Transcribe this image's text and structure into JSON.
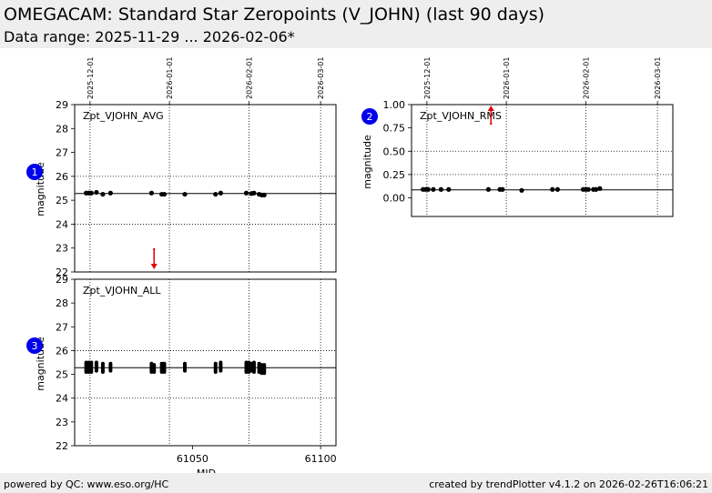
{
  "header": {
    "title": "OMEGACAM: Standard Star Zeropoints (V_JOHN) (last 90 days)",
    "subtitle": "Data range: 2025-11-29 ... 2026-02-06*"
  },
  "footer": {
    "left": "powered by QC: www.eso.org/HC",
    "right": "created by trendPlotter v4.1.2 on 2026-02-26T16:06:21"
  },
  "colors": {
    "marker": "#000000",
    "outlier_arrow": "#dd0000",
    "badge": "#0000ee",
    "header_bg": "#eeeeee"
  },
  "chart_data": [
    {
      "id": "zpt_avg",
      "badge": "1",
      "type": "scatter",
      "label": "Zpt_VJOHN_AVG",
      "ylabel": "magnitude",
      "ylim": [
        22,
        29
      ],
      "yticks": [
        22,
        23,
        24,
        25,
        26,
        27,
        28,
        29
      ],
      "xlim": [
        61004,
        61106
      ],
      "date_ticks": [
        {
          "mjd": 61010,
          "label": "2025-12-01"
        },
        {
          "mjd": 61041,
          "label": "2026-01-01"
        },
        {
          "mjd": 61072,
          "label": "2026-02-01"
        },
        {
          "mjd": 61100,
          "label": "2026-03-01"
        }
      ],
      "hlines": [
        26.0,
        24.0
      ],
      "reference": 25.28,
      "points": [
        {
          "x": 61008.5,
          "y": 25.3
        },
        {
          "x": 61009.5,
          "y": 25.3
        },
        {
          "x": 61010.5,
          "y": 25.3
        },
        {
          "x": 61012.5,
          "y": 25.33
        },
        {
          "x": 61015,
          "y": 25.25
        },
        {
          "x": 61018,
          "y": 25.3
        },
        {
          "x": 61034,
          "y": 25.3
        },
        {
          "x": 61038,
          "y": 25.25
        },
        {
          "x": 61039,
          "y": 25.25
        },
        {
          "x": 61047,
          "y": 25.25
        },
        {
          "x": 61059,
          "y": 25.25
        },
        {
          "x": 61061,
          "y": 25.3
        },
        {
          "x": 61071,
          "y": 25.3
        },
        {
          "x": 61073,
          "y": 25.28
        },
        {
          "x": 61074,
          "y": 25.3
        },
        {
          "x": 61076,
          "y": 25.25
        },
        {
          "x": 61077,
          "y": 25.22
        },
        {
          "x": 61078,
          "y": 25.22
        }
      ],
      "outliers": [
        {
          "x": 61035,
          "direction": "down"
        }
      ]
    },
    {
      "id": "zpt_rms",
      "badge": "2",
      "type": "scatter",
      "label": "Zpt_VJOHN_RMS",
      "ylabel": "magnitude",
      "ylim": [
        -0.2,
        1.0
      ],
      "yticks": [
        0.0,
        0.25,
        0.5,
        0.75,
        1.0
      ],
      "ytick_labels": [
        "0.00",
        "0.25",
        "0.50",
        "0.75",
        "1.00"
      ],
      "xlim": [
        61004,
        61106
      ],
      "date_ticks": [
        {
          "mjd": 61010,
          "label": "2025-12-01"
        },
        {
          "mjd": 61041,
          "label": "2026-01-01"
        },
        {
          "mjd": 61072,
          "label": "2026-02-01"
        },
        {
          "mjd": 61100,
          "label": "2026-03-01"
        }
      ],
      "hlines": [
        0.5,
        0.25
      ],
      "reference": 0.085,
      "points": [
        {
          "x": 61008.5,
          "y": 0.09
        },
        {
          "x": 61009.5,
          "y": 0.09
        },
        {
          "x": 61010.5,
          "y": 0.09
        },
        {
          "x": 61012.5,
          "y": 0.09
        },
        {
          "x": 61015.5,
          "y": 0.09
        },
        {
          "x": 61018.5,
          "y": 0.09
        },
        {
          "x": 61034,
          "y": 0.09
        },
        {
          "x": 61038.5,
          "y": 0.09
        },
        {
          "x": 61039.5,
          "y": 0.09
        },
        {
          "x": 61047,
          "y": 0.08
        },
        {
          "x": 61059,
          "y": 0.09
        },
        {
          "x": 61061,
          "y": 0.09
        },
        {
          "x": 61071,
          "y": 0.09
        },
        {
          "x": 61072,
          "y": 0.09
        },
        {
          "x": 61073,
          "y": 0.09
        },
        {
          "x": 61075,
          "y": 0.09
        },
        {
          "x": 61076,
          "y": 0.09
        },
        {
          "x": 61077.5,
          "y": 0.1
        }
      ],
      "outliers": [
        {
          "x": 61035,
          "direction": "up"
        }
      ]
    },
    {
      "id": "zpt_all",
      "badge": "3",
      "type": "scatter",
      "label": "Zpt_VJOHN_ALL",
      "ylabel": "magnitude",
      "xlabel": "MJD",
      "ylim": [
        22,
        29
      ],
      "yticks": [
        22,
        23,
        24,
        25,
        26,
        27,
        28,
        29
      ],
      "xlim": [
        61004,
        61106
      ],
      "xticks": [
        61050,
        61100
      ],
      "hlines": [
        26.0,
        24.0
      ],
      "reference": 25.28,
      "clusters": [
        {
          "x": 61008.5,
          "ymin": 25.1,
          "ymax": 25.5
        },
        {
          "x": 61009.5,
          "ymin": 25.1,
          "ymax": 25.5
        },
        {
          "x": 61010.5,
          "ymin": 25.1,
          "ymax": 25.5
        },
        {
          "x": 61012.5,
          "ymin": 25.15,
          "ymax": 25.5
        },
        {
          "x": 61015,
          "ymin": 25.1,
          "ymax": 25.45
        },
        {
          "x": 61018,
          "ymin": 25.15,
          "ymax": 25.45
        },
        {
          "x": 61034,
          "ymin": 25.1,
          "ymax": 25.45
        },
        {
          "x": 61035,
          "ymin": 25.1,
          "ymax": 25.4
        },
        {
          "x": 61038,
          "ymin": 25.1,
          "ymax": 25.45
        },
        {
          "x": 61039,
          "ymin": 25.1,
          "ymax": 25.45
        },
        {
          "x": 61047,
          "ymin": 25.15,
          "ymax": 25.45
        },
        {
          "x": 61059,
          "ymin": 25.1,
          "ymax": 25.45
        },
        {
          "x": 61061,
          "ymin": 25.15,
          "ymax": 25.5
        },
        {
          "x": 61071,
          "ymin": 25.1,
          "ymax": 25.5
        },
        {
          "x": 61072,
          "ymin": 25.1,
          "ymax": 25.5
        },
        {
          "x": 61073,
          "ymin": 25.15,
          "ymax": 25.45
        },
        {
          "x": 61074,
          "ymin": 25.1,
          "ymax": 25.5
        },
        {
          "x": 61076,
          "ymin": 25.1,
          "ymax": 25.45
        },
        {
          "x": 61077,
          "ymin": 25.05,
          "ymax": 25.4
        },
        {
          "x": 61078,
          "ymin": 25.05,
          "ymax": 25.4
        }
      ]
    }
  ]
}
